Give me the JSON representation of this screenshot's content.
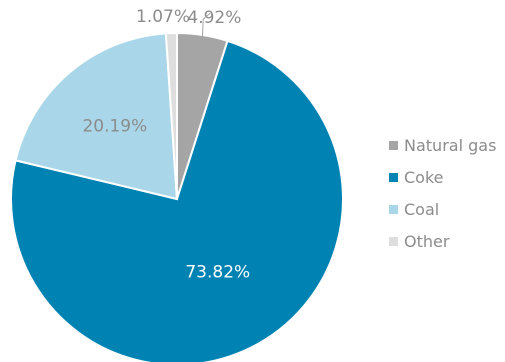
{
  "chart_data": {
    "type": "pie",
    "title": "",
    "slices": [
      {
        "name": "Natural gas",
        "value": 4.92,
        "label": "4.92%",
        "color": "#a5a5a5",
        "label_color": "#8c8c8c"
      },
      {
        "name": "Coke",
        "value": 73.82,
        "label": "73.82%",
        "color": "#0083b3",
        "label_color": "#ffffff"
      },
      {
        "name": "Coal",
        "value": 20.19,
        "label": "20.19%",
        "color": "#a9d6e8",
        "label_color": "#8c8c8c"
      },
      {
        "name": "Other",
        "value": 1.07,
        "label": "1.07%",
        "color": "#dedede",
        "label_color": "#8c8c8c"
      }
    ],
    "legend": {
      "position": "right",
      "entries": [
        "Natural gas",
        "Coke",
        "Coal",
        "Other"
      ]
    }
  }
}
